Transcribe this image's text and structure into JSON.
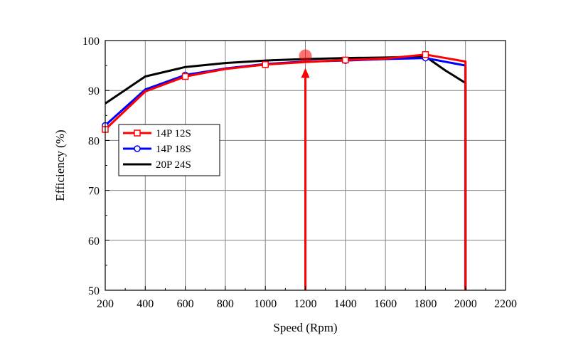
{
  "chart_data": {
    "type": "line",
    "title": "",
    "xlabel": "Speed (Rpm)",
    "ylabel": "Efficiency (%)",
    "xlim": [
      200,
      2200
    ],
    "ylim": [
      50,
      100
    ],
    "x_ticks": [
      200,
      400,
      600,
      800,
      1000,
      1200,
      1400,
      1600,
      1800,
      2000,
      2200
    ],
    "y_ticks": [
      50,
      60,
      70,
      80,
      90,
      100
    ],
    "grid": true,
    "legend_position": "left",
    "series": [
      {
        "name": "14P 12S",
        "color": "#ff0000",
        "marker": "square",
        "x": [
          200,
          400,
          600,
          800,
          1000,
          1200,
          1400,
          1600,
          1800,
          2000,
          2000
        ],
        "y": [
          82.2,
          89.8,
          92.8,
          94.3,
          95.2,
          95.7,
          96.1,
          96.4,
          97.2,
          95.8,
          50
        ],
        "marker_x": [
          200,
          600,
          1000,
          1400,
          1800
        ]
      },
      {
        "name": "14P 18S",
        "color": "#0000ff",
        "marker": "circle",
        "x": [
          200,
          400,
          600,
          800,
          1000,
          1200,
          1400,
          1600,
          1800,
          2000,
          2000
        ],
        "y": [
          83.0,
          90.2,
          93.1,
          94.4,
          95.3,
          95.8,
          96.0,
          96.3,
          96.5,
          95.0,
          50
        ],
        "marker_x": [
          200,
          600,
          1000,
          1400,
          1800
        ]
      },
      {
        "name": "20P 24S",
        "color": "#000000",
        "marker": "none",
        "x": [
          200,
          400,
          600,
          800,
          1000,
          1200,
          1400,
          1600,
          1800,
          1900,
          2000,
          2000
        ],
        "y": [
          87.4,
          92.8,
          94.7,
          95.5,
          96.0,
          96.3,
          96.5,
          96.6,
          96.8,
          94.0,
          91.5,
          50
        ],
        "marker_x": []
      }
    ],
    "annotations": [
      {
        "type": "vertical-arrow",
        "x": 1200,
        "y_from": 50,
        "y_to": 96.8,
        "color": "#ff0000"
      },
      {
        "type": "highlight-point",
        "x": 1200,
        "y": 96.8,
        "color": "#ff0000"
      }
    ]
  }
}
